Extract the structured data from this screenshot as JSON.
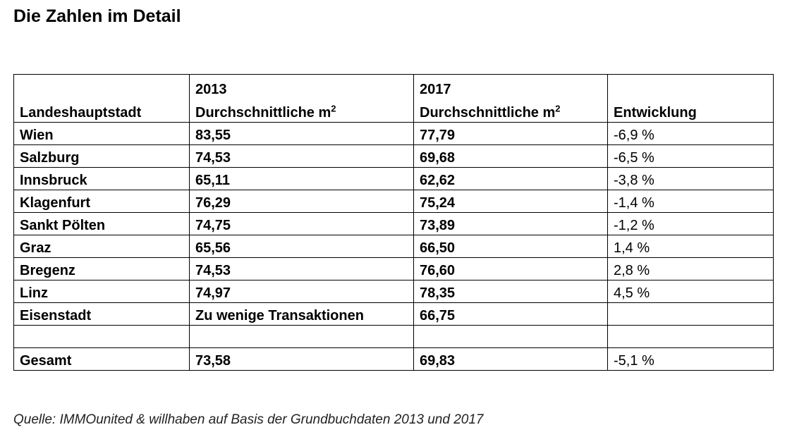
{
  "title": "Die Zahlen im Detail",
  "table": {
    "year_row": [
      "",
      "2013",
      "2017",
      ""
    ],
    "header": {
      "city": "Landeshauptstadt",
      "avg_2013": "Durchschnittliche m",
      "avg_2017": "Durchschnittliche m",
      "unit_sup": "2",
      "change": "Entwicklung"
    },
    "rows": [
      {
        "city": "Wien",
        "v2013": "83,55",
        "v2017": "77,79",
        "change": "-6,9 %"
      },
      {
        "city": "Salzburg",
        "v2013": "74,53",
        "v2017": "69,68",
        "change": "-6,5 %"
      },
      {
        "city": "Innsbruck",
        "v2013": "65,11",
        "v2017": "62,62",
        "change": "-3,8 %"
      },
      {
        "city": "Klagenfurt",
        "v2013": "76,29",
        "v2017": "75,24",
        "change": "-1,4 %"
      },
      {
        "city": "Sankt Pölten",
        "v2013": "74,75",
        "v2017": "73,89",
        "change": "-1,2 %"
      },
      {
        "city": "Graz",
        "v2013": "65,56",
        "v2017": "66,50",
        "change": "1,4 %"
      },
      {
        "city": "Bregenz",
        "v2013": "74,53",
        "v2017": "76,60",
        "change": "2,8 %"
      },
      {
        "city": "Linz",
        "v2013": "74,97",
        "v2017": "78,35",
        "change": "4,5 %"
      },
      {
        "city": "Eisenstadt",
        "v2013": "Zu wenige Transaktionen",
        "v2017": "66,75",
        "change": ""
      },
      {
        "city": "",
        "v2013": "",
        "v2017": "",
        "change": ""
      },
      {
        "city": "Gesamt",
        "v2013": "73,58",
        "v2017": "69,83",
        "change": "-5,1 %"
      }
    ]
  },
  "source": "Quelle: IMMOunited & willhaben auf Basis der Grundbuchdaten 2013 und 2017"
}
